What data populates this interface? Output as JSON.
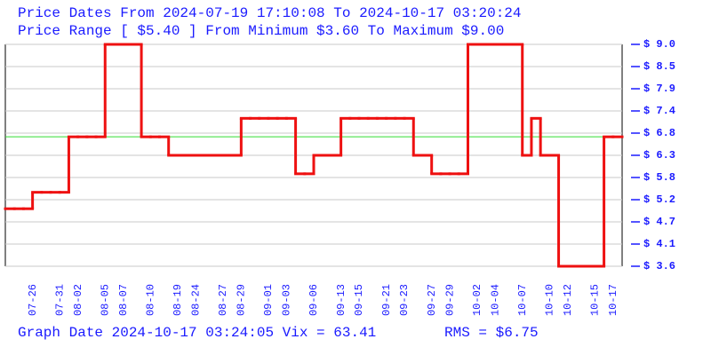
{
  "chart_data": {
    "type": "step",
    "title": "Price Dates From 2024-07-19 17:10:08 To 2024-10-17 03:20:24",
    "subtitle": "Price Range [ $5.40 ] From Minimum $3.60 To Maximum $9.00",
    "footer": "Graph Date 2024-10-17 03:24:05 Vix = 63.41",
    "rms_label": "RMS = $6.75",
    "rms": 6.75,
    "rms_color": "#33dd33",
    "color": "#ee1111",
    "grid": true,
    "ylim": [
      3.6,
      9.0
    ],
    "yticks": [
      {
        "value": 9.0,
        "label": "$ 9.0"
      },
      {
        "value": 8.46,
        "label": "$ 8.5"
      },
      {
        "value": 7.92,
        "label": "$ 7.9"
      },
      {
        "value": 7.38,
        "label": "$ 7.4"
      },
      {
        "value": 6.84,
        "label": "$ 6.8"
      },
      {
        "value": 6.3,
        "label": "$ 6.3"
      },
      {
        "value": 5.76,
        "label": "$ 5.8"
      },
      {
        "value": 5.22,
        "label": "$ 5.2"
      },
      {
        "value": 4.68,
        "label": "$ 4.7"
      },
      {
        "value": 4.14,
        "label": "$ 4.1"
      },
      {
        "value": 3.6,
        "label": "$ 3.6"
      }
    ],
    "categories": [
      null,
      null,
      null,
      "07-26",
      null,
      null,
      "07-31",
      null,
      "08-02",
      null,
      null,
      "08-05",
      null,
      "08-07",
      null,
      null,
      "08-10",
      null,
      null,
      "08-19",
      null,
      "08-24",
      null,
      null,
      "08-27",
      null,
      "08-29",
      null,
      null,
      "09-01",
      null,
      "09-03",
      null,
      null,
      "09-06",
      null,
      null,
      "09-13",
      null,
      "09-15",
      null,
      null,
      "09-21",
      null,
      "09-23",
      null,
      null,
      "09-27",
      null,
      "09-29",
      null,
      null,
      "10-02",
      null,
      "10-04",
      null,
      null,
      "10-07",
      null,
      null,
      "10-10",
      null,
      "10-12",
      null,
      null,
      "10-15",
      null,
      "10-17"
    ],
    "values": [
      5.0,
      5.0,
      5.0,
      5.4,
      5.4,
      5.4,
      5.4,
      6.75,
      6.75,
      6.75,
      6.75,
      9.0,
      9.0,
      9.0,
      9.0,
      6.75,
      6.75,
      6.75,
      6.3,
      6.3,
      6.3,
      6.3,
      6.3,
      6.3,
      6.3,
      6.3,
      7.2,
      7.2,
      7.2,
      7.2,
      7.2,
      7.2,
      5.85,
      5.85,
      6.3,
      6.3,
      6.3,
      7.2,
      7.2,
      7.2,
      7.2,
      7.2,
      7.2,
      7.2,
      7.2,
      6.3,
      6.3,
      5.85,
      5.85,
      5.85,
      5.85,
      9.0,
      9.0,
      9.0,
      9.0,
      9.0,
      9.0,
      6.3,
      7.2,
      6.3,
      6.3,
      3.6,
      3.6,
      3.6,
      3.6,
      3.6,
      6.75,
      6.75
    ]
  }
}
